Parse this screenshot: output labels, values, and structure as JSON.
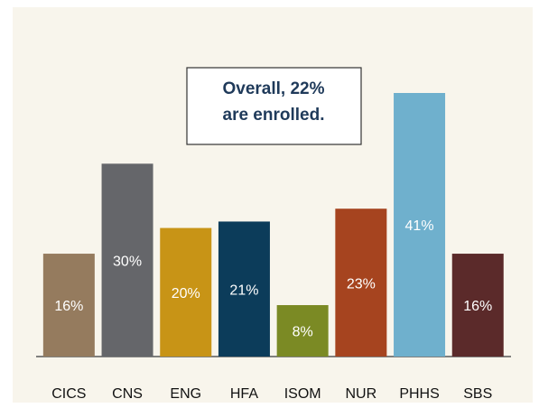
{
  "chart_data": {
    "type": "bar",
    "annotation": [
      "Overall, 22%",
      "are enrolled."
    ],
    "categories": [
      "CICS",
      "CNS",
      "ENG",
      "HFA",
      "ISOM",
      "NUR",
      "PHHS",
      "SBS"
    ],
    "values": [
      16,
      30,
      20,
      21,
      8,
      23,
      41,
      16
    ],
    "value_labels": [
      "16%",
      "30%",
      "20%",
      "21%",
      "8%",
      "23%",
      "41%",
      "16%"
    ],
    "colors": [
      "#957b5e",
      "#65666a",
      "#c89416",
      "#0c3c5a",
      "#7b8a24",
      "#a6441f",
      "#6fb0cd",
      "#5b2a2a"
    ]
  }
}
